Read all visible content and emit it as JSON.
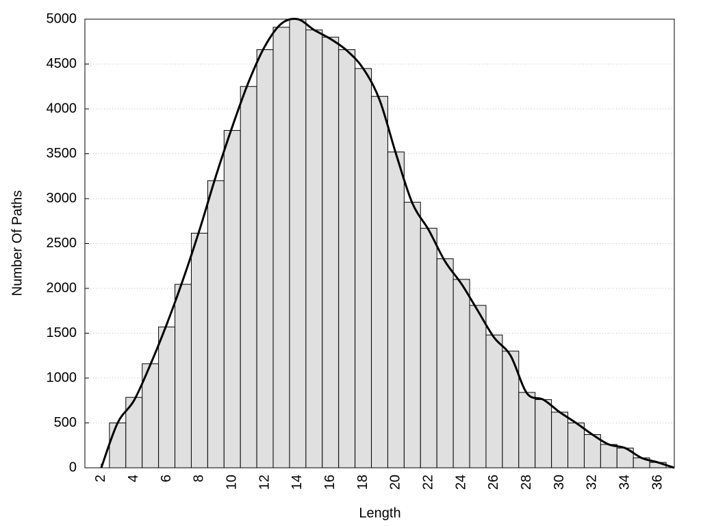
{
  "chart_data": {
    "type": "histogram",
    "xlabel": "Length",
    "ylabel": "Number Of Paths",
    "bins": [
      2.5,
      3.5,
      4.5,
      5.5,
      6.5,
      7.5,
      8.5,
      9.5,
      10.5,
      11.5,
      12.5,
      13.5,
      14.5,
      15.5,
      16.5,
      17.5,
      18.5,
      19.5,
      20.5,
      21.5,
      22.5,
      23.5,
      24.5,
      25.5,
      26.5,
      27.5,
      28.5,
      29.5,
      30.5,
      31.5,
      32.5,
      33.5,
      34.5,
      35.5,
      36.5
    ],
    "values": [
      500,
      785,
      1160,
      1570,
      2045,
      2615,
      3200,
      3760,
      4250,
      4660,
      4910,
      5000,
      4880,
      4800,
      4660,
      4450,
      4140,
      3520,
      2960,
      2670,
      2330,
      2100,
      1810,
      1480,
      1300,
      840,
      760,
      620,
      500,
      370,
      260,
      220,
      110,
      60
    ],
    "color": "#e0e0e0",
    "line": {
      "type": "line",
      "color": "#000000",
      "x": [
        2,
        3,
        4,
        5,
        6,
        7,
        8,
        9,
        10,
        11,
        12,
        13,
        14,
        15,
        16,
        17,
        18,
        19,
        20,
        21,
        22,
        23,
        24,
        25,
        26,
        27,
        28,
        29,
        30,
        31,
        32,
        33,
        34,
        35,
        36,
        37
      ],
      "values": [
        0,
        500,
        750,
        1150,
        1600,
        2100,
        2650,
        3250,
        3800,
        4300,
        4700,
        4950,
        5000,
        4880,
        4780,
        4650,
        4450,
        4100,
        3500,
        2950,
        2650,
        2300,
        2050,
        1750,
        1450,
        1250,
        830,
        760,
        620,
        500,
        370,
        260,
        220,
        110,
        60,
        0
      ]
    },
    "xlim": [
      1,
      37
    ],
    "xticks": [
      2,
      4,
      6,
      8,
      10,
      12,
      14,
      16,
      18,
      20,
      22,
      24,
      26,
      28,
      30,
      32,
      34,
      36
    ],
    "ylim": [
      0,
      5000
    ],
    "yticks": [
      0,
      500,
      1000,
      1500,
      2000,
      2500,
      3000,
      3500,
      4000,
      4500,
      5000
    ],
    "grid": true
  }
}
